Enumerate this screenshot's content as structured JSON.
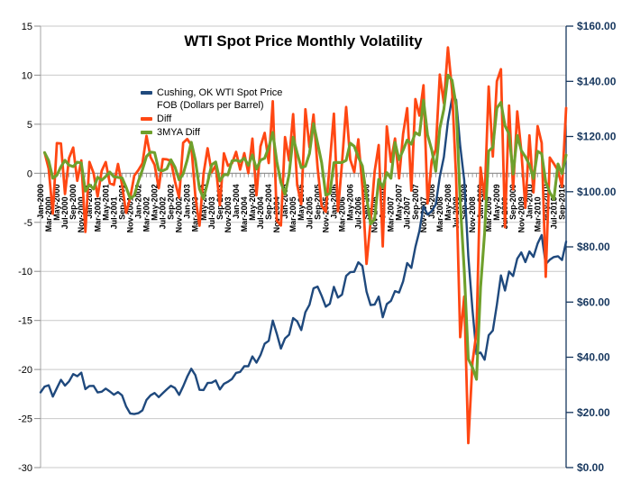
{
  "chart": {
    "title": "WTI Spot Price Monthly Volatility",
    "legend": {
      "items": [
        {
          "label": "Cushing, OK WTI Spot Price FOB (Dollars per Barrel)",
          "color": "#1F497D"
        },
        {
          "label": "Diff",
          "color": "#FF4713"
        },
        {
          "label": "3MYA Diff",
          "color": "#6FA02C"
        }
      ]
    },
    "colors": {
      "right_axis": "#17375E",
      "grid": "#C9C9C9",
      "left_axis_line": "#A6A6A6",
      "zero_axis_and_ticks": "#8C8C8C",
      "title_text": "#000000",
      "background": "#FFFFFF"
    }
  },
  "chart_data": {
    "type": "line",
    "title": "WTI Spot Price Monthly Volatility",
    "grid": "horizontal",
    "legend_position": "inside-top-left-of-plot",
    "x_axis": {
      "frequency": "monthly",
      "tick_label_every_n_months": 2,
      "tick_labels": [
        "Jan-2000",
        "Mar-2000",
        "May-2000",
        "Jul-2000",
        "Sep-2000",
        "Nov-2000",
        "Jan-2001",
        "Mar-2001",
        "May-2001",
        "Jul-2001",
        "Sep-2001",
        "Nov-2001",
        "Jan-2002",
        "Mar-2002",
        "May-2002",
        "Jul-2002",
        "Sep-2002",
        "Nov-2002",
        "Jan-2003",
        "Mar-2003",
        "May-2003",
        "Jul-2003",
        "Sep-2003",
        "Nov-2003",
        "Jan-2004",
        "Mar-2004",
        "May-2004",
        "Jul-2004",
        "Sep-2004",
        "Nov-2004",
        "Jan-2005",
        "Mar-2005",
        "May-2005",
        "Jul-2005",
        "Sep-2005",
        "Nov-2005",
        "Jan-2006",
        "Mar-2006",
        "May-2006",
        "Jul-2006",
        "Sep-2006",
        "Nov-2006",
        "Jan-2007",
        "Mar-2007",
        "May-2007",
        "Jul-2007",
        "Sep-2007",
        "Nov-2007",
        "Jan-2008",
        "Mar-2008",
        "May-2008",
        "Jul-2008",
        "Sep-2008",
        "Nov-2008",
        "Jan-2009",
        "Mar-2009",
        "May-2009",
        "Jul-2009",
        "Sep-2009",
        "Nov-2009",
        "Jan-2010",
        "Mar-2010",
        "May-2010",
        "Jul-2010",
        "Sep-2010"
      ]
    },
    "left_y_axis": {
      "min": -30,
      "max": 15,
      "step": 5,
      "tick_labels": [
        "15",
        "10",
        "5",
        "0",
        "-5",
        "-10",
        "-15",
        "-20",
        "-25",
        "-30"
      ]
    },
    "right_y_axis": {
      "min": 0,
      "max": 160,
      "step": 20,
      "tick_labels": [
        "$160.00",
        "$140.00",
        "$120.00",
        "$100.00",
        "$80.00",
        "$60.00",
        "$40.00",
        "$20.00",
        "$0.00"
      ]
    },
    "series": [
      {
        "name": "Cushing, OK WTI Spot Price FOB (Dollars per Barrel)",
        "axis": "right",
        "color": "#1F497D",
        "values": [
          27.26,
          29.37,
          29.84,
          25.72,
          28.79,
          31.82,
          29.7,
          31.26,
          33.88,
          33.11,
          34.42,
          28.44,
          29.59,
          29.61,
          27.24,
          27.49,
          28.63,
          27.6,
          26.42,
          27.37,
          26.2,
          22.17,
          19.64,
          19.39,
          19.71,
          20.72,
          24.53,
          26.18,
          27.04,
          25.52,
          26.97,
          28.39,
          29.66,
          28.84,
          26.35,
          29.46,
          32.95,
          35.83,
          33.51,
          28.17,
          28.11,
          30.66,
          30.76,
          31.57,
          28.31,
          30.34,
          31.11,
          32.13,
          34.31,
          34.69,
          36.74,
          36.75,
          40.28,
          38.03,
          40.78,
          44.9,
          45.94,
          53.28,
          48.47,
          43.15,
          46.84,
          48.15,
          54.19,
          52.98,
          49.83,
          56.35,
          59.0,
          64.99,
          65.59,
          62.26,
          58.32,
          59.41,
          65.49,
          61.63,
          62.69,
          69.44,
          70.84,
          70.95,
          74.41,
          73.04,
          63.8,
          58.89,
          59.08,
          61.96,
          54.51,
          59.28,
          60.44,
          63.98,
          63.46,
          67.49,
          74.12,
          72.36,
          79.92,
          85.8,
          94.77,
          91.69,
          92.97,
          95.39,
          105.45,
          112.58,
          125.4,
          133.88,
          133.37,
          116.67,
          104.11,
          76.61,
          57.31,
          41.12,
          41.71,
          39.09,
          47.94,
          49.65,
          59.03,
          69.64,
          64.15,
          71.05,
          69.41,
          75.72,
          77.99,
          74.47,
          78.33,
          76.39,
          81.2,
          84.29,
          73.74,
          75.34,
          76.32,
          76.6,
          75.24,
          81.89
        ]
      },
      {
        "name": "Diff",
        "axis": "left",
        "color": "#FF4713",
        "derivation": "month-over-month change of the spot price series (computed from series[0].values)"
      },
      {
        "name": "3MYA Diff",
        "axis": "left",
        "color": "#6FA02C",
        "derivation": "3-month moving average of the Diff series (computed from series[0].values)"
      }
    ]
  }
}
